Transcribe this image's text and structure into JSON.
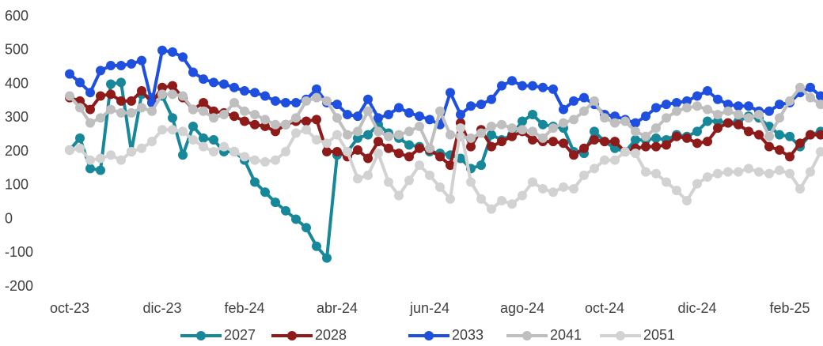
{
  "chart_data": {
    "type": "line",
    "categories": [
      "oct-23",
      null,
      null,
      null,
      null,
      null,
      null,
      null,
      null,
      "dic-23",
      null,
      null,
      null,
      null,
      null,
      null,
      null,
      "feb-24",
      null,
      null,
      null,
      null,
      null,
      null,
      null,
      null,
      "abr-24",
      null,
      null,
      null,
      null,
      null,
      null,
      null,
      null,
      "jun-24",
      null,
      null,
      null,
      null,
      null,
      null,
      null,
      null,
      "ago-24",
      null,
      null,
      null,
      null,
      null,
      null,
      null,
      "oct-24",
      null,
      null,
      null,
      null,
      null,
      null,
      null,
      null,
      "dic-24",
      null,
      null,
      null,
      null,
      null,
      null,
      null,
      null,
      "feb-25",
      null,
      null,
      null
    ],
    "ylim": [
      -200,
      600
    ],
    "yticks": [
      -200,
      -100,
      0,
      100,
      200,
      300,
      400,
      500,
      600
    ],
    "series": [
      {
        "name": "2027",
        "color": "#17879a",
        "values": [
          205,
          240,
          150,
          145,
          400,
          405,
          200,
          370,
          360,
          365,
          300,
          190,
          275,
          240,
          235,
          200,
          200,
          175,
          110,
          80,
          50,
          25,
          0,
          -25,
          -80,
          -115,
          190,
          200,
          240,
          250,
          280,
          255,
          240,
          220,
          215,
          200,
          195,
          190,
          180,
          150,
          160,
          250,
          235,
          250,
          290,
          310,
          280,
          275,
          270,
          200,
          195,
          260,
          230,
          210,
          200,
          235,
          235,
          240,
          235,
          250,
          245,
          260,
          290,
          290,
          285,
          290,
          305,
          300,
          275,
          250,
          245,
          215,
          250,
          260
        ]
      },
      {
        "name": "2028",
        "color": "#8e1a1a",
        "values": [
          360,
          350,
          325,
          365,
          370,
          350,
          350,
          380,
          345,
          390,
          395,
          360,
          325,
          345,
          320,
          315,
          305,
          290,
          280,
          275,
          260,
          280,
          290,
          290,
          295,
          200,
          200,
          185,
          205,
          180,
          230,
          210,
          195,
          185,
          210,
          205,
          185,
          160,
          285,
          215,
          265,
          215,
          230,
          245,
          260,
          235,
          230,
          230,
          225,
          190,
          210,
          235,
          230,
          230,
          200,
          210,
          215,
          215,
          220,
          245,
          240,
          225,
          230,
          270,
          285,
          280,
          260,
          250,
          215,
          205,
          185,
          225,
          250,
          250
        ]
      },
      {
        "name": "2033",
        "color": "#1f4fde",
        "values": [
          430,
          405,
          375,
          440,
          455,
          455,
          460,
          470,
          345,
          500,
          495,
          480,
          435,
          415,
          405,
          400,
          390,
          380,
          375,
          365,
          350,
          345,
          345,
          355,
          385,
          345,
          340,
          310,
          305,
          355,
          300,
          310,
          330,
          315,
          305,
          295,
          280,
          375,
          310,
          335,
          340,
          355,
          395,
          410,
          395,
          395,
          390,
          385,
          325,
          350,
          360,
          340,
          310,
          305,
          295,
          285,
          305,
          330,
          340,
          345,
          350,
          365,
          380,
          355,
          340,
          335,
          335,
          320,
          320,
          340,
          345,
          375,
          390,
          365
        ]
      },
      {
        "name": "2041",
        "color": "#bfbfbf",
        "values": [
          365,
          330,
          285,
          300,
          325,
          315,
          315,
          330,
          320,
          370,
          370,
          365,
          325,
          320,
          300,
          310,
          345,
          320,
          310,
          295,
          280,
          280,
          300,
          350,
          360,
          350,
          300,
          250,
          260,
          320,
          260,
          245,
          250,
          260,
          275,
          210,
          320,
          250,
          245,
          240,
          255,
          275,
          280,
          270,
          265,
          260,
          240,
          270,
          285,
          295,
          320,
          350,
          300,
          285,
          290,
          260,
          245,
          270,
          300,
          320,
          330,
          335,
          325,
          310,
          320,
          310,
          300,
          310,
          245,
          300,
          350,
          390,
          360,
          340
        ]
      },
      {
        "name": "2051",
        "color": "#d2d2d2",
        "values": [
          205,
          210,
          175,
          180,
          190,
          175,
          200,
          210,
          230,
          265,
          265,
          260,
          235,
          215,
          200,
          215,
          200,
          185,
          175,
          170,
          175,
          200,
          255,
          265,
          235,
          225,
          250,
          200,
          120,
          130,
          195,
          110,
          70,
          115,
          160,
          130,
          95,
          60,
          270,
          110,
          60,
          30,
          55,
          45,
          70,
          110,
          90,
          80,
          95,
          90,
          130,
          150,
          175,
          175,
          200,
          195,
          140,
          135,
          110,
          85,
          55,
          105,
          125,
          135,
          140,
          140,
          150,
          140,
          135,
          145,
          135,
          90,
          140,
          200
        ]
      }
    ]
  }
}
